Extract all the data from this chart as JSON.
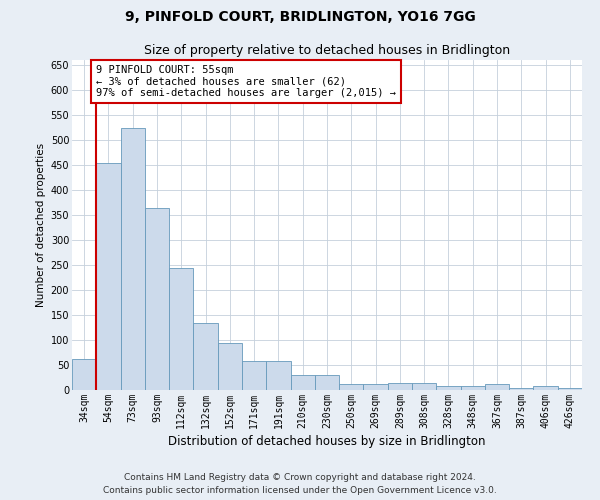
{
  "title1": "9, PINFOLD COURT, BRIDLINGTON, YO16 7GG",
  "title2": "Size of property relative to detached houses in Bridlington",
  "xlabel": "Distribution of detached houses by size in Bridlington",
  "ylabel": "Number of detached properties",
  "categories": [
    "34sqm",
    "54sqm",
    "73sqm",
    "93sqm",
    "112sqm",
    "132sqm",
    "152sqm",
    "171sqm",
    "191sqm",
    "210sqm",
    "230sqm",
    "250sqm",
    "269sqm",
    "289sqm",
    "308sqm",
    "328sqm",
    "348sqm",
    "367sqm",
    "387sqm",
    "406sqm",
    "426sqm"
  ],
  "values": [
    62,
    455,
    525,
    365,
    245,
    135,
    95,
    58,
    58,
    30,
    30,
    12,
    12,
    15,
    15,
    8,
    8,
    12,
    5,
    8,
    5
  ],
  "bar_color": "#ccdaeb",
  "bar_edge_color": "#6699bb",
  "vline_color": "#cc0000",
  "annotation_text": "9 PINFOLD COURT: 55sqm\n← 3% of detached houses are smaller (62)\n97% of semi-detached houses are larger (2,015) →",
  "annotation_box_color": "#cc0000",
  "ylim": [
    0,
    660
  ],
  "yticks": [
    0,
    50,
    100,
    150,
    200,
    250,
    300,
    350,
    400,
    450,
    500,
    550,
    600,
    650
  ],
  "footer1": "Contains HM Land Registry data © Crown copyright and database right 2024.",
  "footer2": "Contains public sector information licensed under the Open Government Licence v3.0.",
  "bg_color": "#e8eef5",
  "plot_bg_color": "#ffffff",
  "grid_color": "#c5d0dc",
  "title1_fontsize": 10,
  "title2_fontsize": 9,
  "xlabel_fontsize": 8.5,
  "ylabel_fontsize": 7.5,
  "tick_fontsize": 7,
  "footer_fontsize": 6.5,
  "annot_fontsize": 7.5
}
